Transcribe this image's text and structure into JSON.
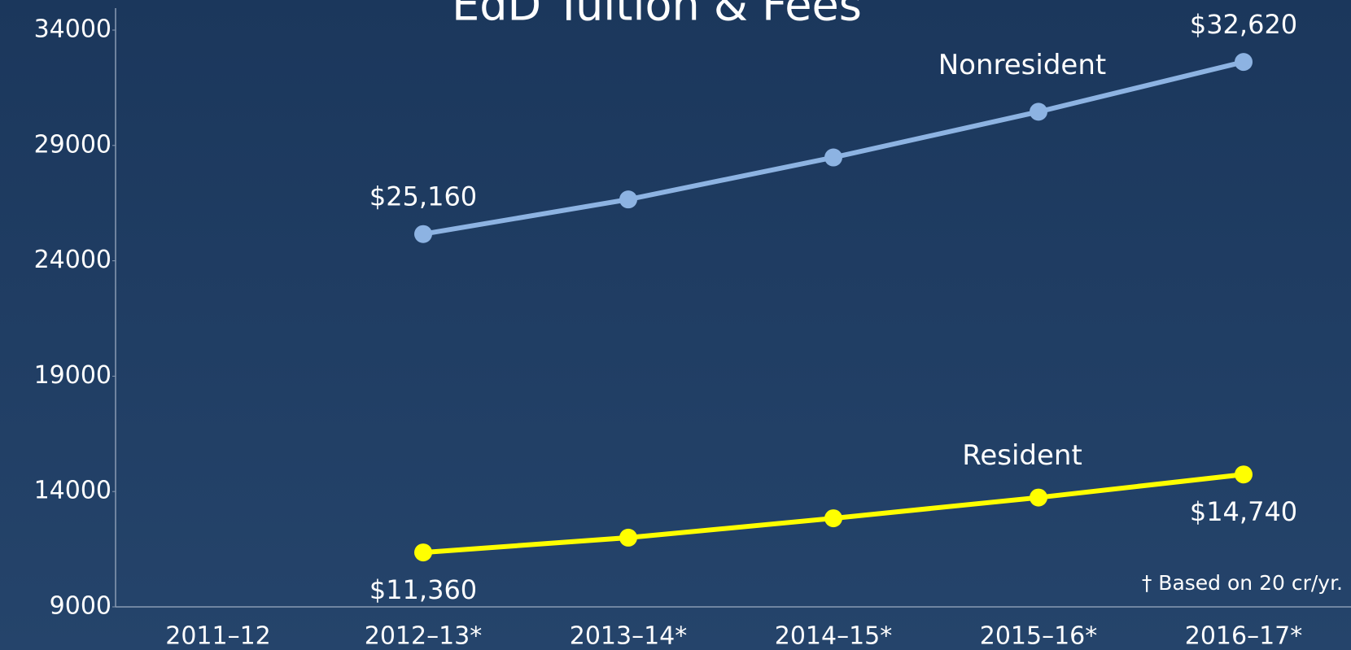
{
  "chart_data": {
    "type": "line",
    "title": "EdD Tuition & Fees",
    "categories": [
      "2011–12",
      "2012–13*",
      "2013–14*",
      "2014–15*",
      "2015–16*",
      "2016–17*"
    ],
    "series": [
      {
        "name": "Nonresident",
        "color": "#8db3e2",
        "values": [
          null,
          25160,
          26660,
          28480,
          30460,
          32620
        ],
        "value_labels": [
          null,
          "$25,160",
          null,
          null,
          null,
          "$32,620"
        ]
      },
      {
        "name": "Resident",
        "color": "#ffff00",
        "values": [
          null,
          11360,
          12000,
          12840,
          13740,
          14740
        ],
        "value_labels": [
          null,
          "$11,360",
          null,
          null,
          null,
          "$14,740"
        ]
      }
    ],
    "ylim": [
      9000,
      34000
    ],
    "yticks": [
      9000,
      14000,
      19000,
      24000,
      29000,
      34000
    ],
    "footnote": "† Based on 20 cr/yr."
  }
}
